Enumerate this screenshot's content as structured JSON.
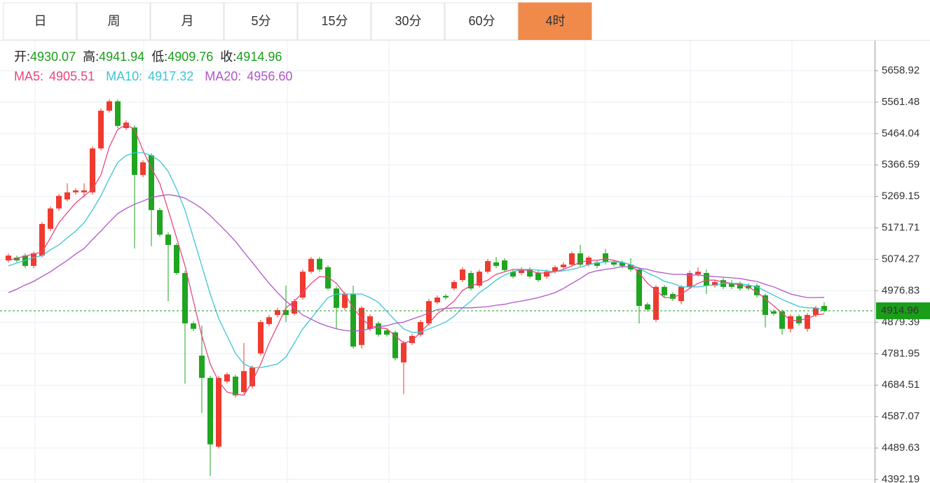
{
  "tabs": {
    "items": [
      "日",
      "周",
      "月",
      "5分",
      "15分",
      "30分",
      "60分",
      "4时"
    ],
    "active": 7
  },
  "chart_data": {
    "type": "candlestick",
    "header": [
      {
        "label": "开:",
        "value": 4930.07
      },
      {
        "label": "高:",
        "value": 4941.94
      },
      {
        "label": "低:",
        "value": 4909.76
      },
      {
        "label": "收:",
        "value": 4914.96
      }
    ],
    "header_value_color": "#1a9e1a",
    "legend_separator": ":",
    "up_color": "#f03a2e",
    "down_color": "#1fa51f",
    "ylim": [
      4381.3,
      5752.2
    ],
    "yticks": [
      5658.92,
      5561.48,
      5464.04,
      5366.59,
      5269.15,
      5171.71,
      5074.27,
      4976.83,
      4879.39,
      4781.95,
      4684.51,
      4587.07,
      4489.63,
      4392.19
    ],
    "grid": true,
    "last_price": 4914.96,
    "last_price_color": "#1a9e1a",
    "ohlc": [
      [
        5071,
        5093,
        5065,
        5086
      ],
      [
        5080,
        5086,
        5065,
        5071
      ],
      [
        5086,
        5093,
        5047,
        5054
      ],
      [
        5054,
        5099,
        5047,
        5093
      ],
      [
        5086,
        5190,
        5080,
        5184
      ],
      [
        5169,
        5238,
        5162,
        5232
      ],
      [
        5232,
        5277,
        5225,
        5271
      ],
      [
        5260,
        5310,
        5253,
        5282
      ],
      [
        5282,
        5295,
        5275,
        5288
      ],
      [
        5282,
        5310,
        5266,
        5288
      ],
      [
        5282,
        5425,
        5275,
        5418
      ],
      [
        5418,
        5542,
        5412,
        5535
      ],
      [
        5535,
        5570,
        5529,
        5564
      ],
      [
        5564,
        5570,
        5481,
        5488
      ],
      [
        5481,
        5505,
        5475,
        5498
      ],
      [
        5483,
        5490,
        5108,
        5336
      ],
      [
        5336,
        5381,
        5329,
        5375
      ],
      [
        5397,
        5403,
        5115,
        5227
      ],
      [
        5227,
        5234,
        5145,
        5151
      ],
      [
        5151,
        5158,
        4945,
        5119
      ],
      [
        5119,
        5125,
        5026,
        5032
      ],
      [
        5032,
        5039,
        4689,
        4876
      ],
      [
        4876,
        4882,
        4852,
        4859
      ],
      [
        4776,
        4869,
        4598,
        4707
      ],
      [
        4707,
        4713,
        4403,
        4501
      ],
      [
        4494,
        4713,
        4488,
        4707
      ],
      [
        4696,
        4724,
        4690,
        4718
      ],
      [
        4711,
        4717,
        4646,
        4653
      ],
      [
        4663,
        4815,
        4657,
        4728
      ],
      [
        4681,
        4746,
        4674,
        4739
      ],
      [
        4783,
        4887,
        4776,
        4880
      ],
      [
        4874,
        4902,
        4867,
        4895
      ],
      [
        4902,
        4924,
        4895,
        4917
      ],
      [
        4917,
        4993,
        4880,
        4902
      ],
      [
        4906,
        4952,
        4900,
        4945
      ],
      [
        4956,
        5043,
        4950,
        5036
      ],
      [
        5036,
        5082,
        5030,
        5076
      ],
      [
        5076,
        5082,
        5036,
        5043
      ],
      [
        5050,
        5056,
        4978,
        4984
      ],
      [
        4984,
        4991,
        4859,
        4924
      ],
      [
        4924,
        4973,
        4917,
        4967
      ],
      [
        4967,
        4993,
        4798,
        4804
      ],
      [
        4809,
        4930,
        4798,
        4924
      ],
      [
        4859,
        4904,
        4852,
        4898
      ],
      [
        4876,
        4882,
        4835,
        4841
      ],
      [
        4854,
        4861,
        4835,
        4841
      ],
      [
        4848,
        4854,
        4761,
        4768
      ],
      [
        4755,
        4822,
        4657,
        4815
      ],
      [
        4815,
        4843,
        4809,
        4837
      ],
      [
        4841,
        4887,
        4835,
        4880
      ],
      [
        4876,
        4952,
        4869,
        4945
      ],
      [
        4941,
        4963,
        4935,
        4956
      ],
      [
        4961,
        4967,
        4950,
        4956
      ],
      [
        4984,
        5010,
        4978,
        5004
      ],
      [
        5010,
        5050,
        5004,
        5043
      ],
      [
        5032,
        5039,
        4978,
        4984
      ],
      [
        4993,
        5043,
        4987,
        5036
      ],
      [
        5036,
        5076,
        5030,
        5069
      ],
      [
        5065,
        5082,
        5047,
        5054
      ],
      [
        5071,
        5078,
        5034,
        5041
      ],
      [
        5036,
        5043,
        5015,
        5021
      ],
      [
        5032,
        5050,
        5026,
        5043
      ],
      [
        5043,
        5050,
        5015,
        5021
      ],
      [
        5032,
        5039,
        5004,
        5010
      ],
      [
        5021,
        5043,
        5015,
        5036
      ],
      [
        5036,
        5056,
        5030,
        5050
      ],
      [
        5050,
        5065,
        5043,
        5058
      ],
      [
        5058,
        5099,
        5052,
        5093
      ],
      [
        5093,
        5119,
        5052,
        5058
      ],
      [
        5058,
        5086,
        5052,
        5080
      ],
      [
        5065,
        5071,
        5047,
        5054
      ],
      [
        5093,
        5106,
        5058,
        5065
      ],
      [
        5065,
        5071,
        5052,
        5058
      ],
      [
        5065,
        5071,
        5047,
        5054
      ],
      [
        5058,
        5078,
        5036,
        5043
      ],
      [
        5043,
        5050,
        4876,
        4930
      ],
      [
        4935,
        4941,
        4913,
        4919
      ],
      [
        4887,
        4995,
        4880,
        4989
      ],
      [
        4989,
        4995,
        4956,
        4963
      ],
      [
        4967,
        4973,
        4945,
        4952
      ],
      [
        4945,
        4995,
        4935,
        4989
      ],
      [
        4989,
        5039,
        4982,
        5032
      ],
      [
        5028,
        5050,
        5021,
        5036
      ],
      [
        5032,
        5043,
        4967,
        4993
      ],
      [
        4993,
        5010,
        4987,
        5004
      ],
      [
        5010,
        5017,
        4982,
        4989
      ],
      [
        5000,
        5010,
        4982,
        4989
      ],
      [
        5000,
        5006,
        4978,
        4984
      ],
      [
        4993,
        5000,
        4978,
        4984
      ],
      [
        4993,
        5000,
        4956,
        4963
      ],
      [
        4963,
        4969,
        4863,
        4902
      ],
      [
        4913,
        4919,
        4900,
        4906
      ],
      [
        4913,
        4919,
        4841,
        4859
      ],
      [
        4859,
        4904,
        4848,
        4898
      ],
      [
        4898,
        4904,
        4869,
        4876
      ],
      [
        4859,
        4908,
        4850,
        4902
      ],
      [
        4902,
        4930,
        4895,
        4924
      ],
      [
        4930.07,
        4941.94,
        4909.76,
        4914.96
      ]
    ],
    "series": [
      {
        "name": "MA5",
        "color": "#e8477c",
        "latest": 4905.51,
        "values": [
          5071,
          5078,
          5084,
          5091,
          5097,
          5141,
          5188,
          5219,
          5249,
          5271,
          5292,
          5336,
          5423,
          5477,
          5492,
          5477,
          5412,
          5357,
          5310,
          5227,
          5141,
          5054,
          4945,
          4837,
          4750,
          4696,
          4663,
          4657,
          4653,
          4696,
          4750,
          4815,
          4869,
          4924,
          4945,
          4971,
          5000,
          5021,
          5019,
          5000,
          4967,
          4924,
          4891,
          4869,
          4863,
          4859,
          4837,
          4815,
          4822,
          4848,
          4876,
          4906,
          4924,
          4945,
          4978,
          4993,
          5000,
          5010,
          5028,
          5036,
          5043,
          5043,
          5039,
          5032,
          5032,
          5036,
          5043,
          5054,
          5065,
          5071,
          5071,
          5076,
          5071,
          5065,
          5058,
          5032,
          5000,
          4978,
          4956,
          4956,
          4967,
          4984,
          5000,
          5010,
          5010,
          5004,
          5000,
          4995,
          4989,
          4973,
          4952,
          4930,
          4908,
          4885,
          4885,
          4891,
          4902,
          4905.51
        ]
      },
      {
        "name": "MA10",
        "color": "#3cc4d6",
        "latest": 4917.32,
        "values": [
          5054,
          5063,
          5071,
          5080,
          5086,
          5104,
          5119,
          5141,
          5162,
          5188,
          5227,
          5271,
          5325,
          5375,
          5396,
          5405,
          5405,
          5396,
          5379,
          5347,
          5292,
          5227,
          5141,
          5054,
          4967,
          4891,
          4837,
          4783,
          4750,
          4739,
          4739,
          4744,
          4750,
          4772,
          4815,
          4859,
          4891,
          4924,
          4956,
          4967,
          4967,
          4967,
          4967,
          4956,
          4941,
          4913,
          4885,
          4859,
          4848,
          4848,
          4859,
          4869,
          4880,
          4898,
          4924,
          4945,
          4971,
          4989,
          5010,
          5026,
          5036,
          5043,
          5043,
          5041,
          5039,
          5036,
          5039,
          5043,
          5050,
          5058,
          5063,
          5067,
          5067,
          5065,
          5058,
          5047,
          5032,
          5021,
          5006,
          5000,
          4989,
          4989,
          4989,
          4993,
          4995,
          5000,
          5000,
          5000,
          4995,
          4989,
          4976,
          4963,
          4950,
          4939,
          4928,
          4924,
          4924,
          4917.32
        ]
      },
      {
        "name": "MA20",
        "color": "#b155c9",
        "latest": {
          "value": 4956.6,
          "label": "4956.60"
        },
        "values": [
          4971,
          4982,
          4995,
          5006,
          5021,
          5036,
          5054,
          5071,
          5091,
          5108,
          5136,
          5162,
          5190,
          5216,
          5232,
          5245,
          5255,
          5266,
          5271,
          5275,
          5271,
          5264,
          5249,
          5232,
          5210,
          5184,
          5158,
          5130,
          5097,
          5065,
          5032,
          5000,
          4971,
          4945,
          4924,
          4902,
          4889,
          4876,
          4867,
          4859,
          4854,
          4852,
          4854,
          4859,
          4865,
          4869,
          4876,
          4880,
          4889,
          4898,
          4908,
          4919,
          4922,
          4924,
          4924,
          4924,
          4926,
          4928,
          4932,
          4935,
          4941,
          4945,
          4950,
          4956,
          4963,
          4971,
          4984,
          5000,
          5015,
          5032,
          5039,
          5043,
          5047,
          5052,
          5050,
          5047,
          5043,
          5036,
          5032,
          5028,
          5028,
          5026,
          5026,
          5023,
          5021,
          5019,
          5017,
          5015,
          5010,
          5006,
          4997,
          4989,
          4978,
          4967,
          4961,
          4956,
          4956,
          4956.6
        ]
      }
    ]
  }
}
